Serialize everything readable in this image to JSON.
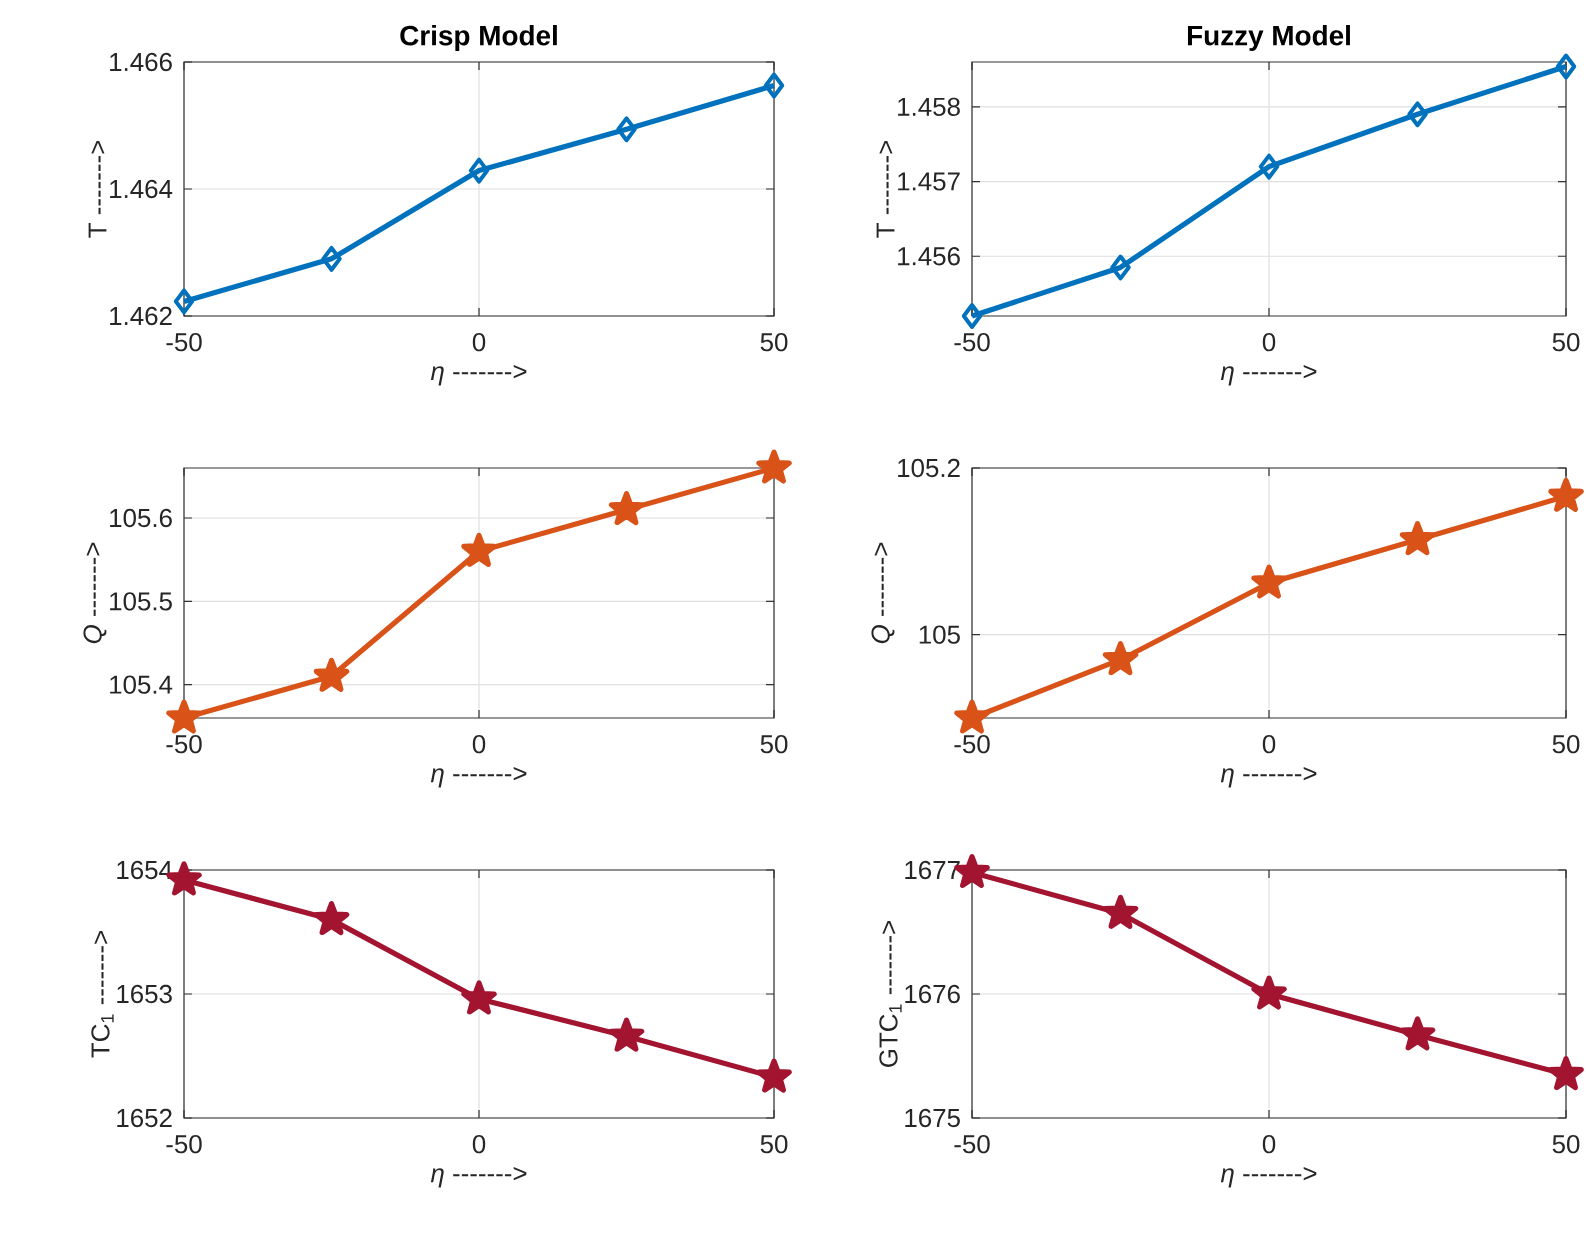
{
  "chart_data": [
    {
      "type": "line",
      "title": "Crisp Model",
      "xlabel": "*η* ------->",
      "ylabel": "T ------->",
      "x": [
        -50,
        -25,
        0,
        25,
        50
      ],
      "xlim": [
        -50,
        50
      ],
      "xticks": [
        -50,
        0,
        50
      ],
      "ylim": [
        1.462,
        1.466
      ],
      "yticks": [
        1.462,
        1.464,
        1.466
      ],
      "grid": true,
      "marker": "diamond",
      "line_style": "solid",
      "series": [
        {
          "color": "#0072bd",
          "values": [
            1.46223,
            1.4629,
            1.46429,
            1.46494,
            1.46563
          ]
        }
      ]
    },
    {
      "type": "line",
      "title": "Fuzzy Model",
      "xlabel": "*η* ------->",
      "ylabel": "T ------->",
      "x": [
        -50,
        -25,
        0,
        25,
        50
      ],
      "xlim": [
        -50,
        50
      ],
      "xticks": [
        -50,
        0,
        50
      ],
      "ylim": [
        1.4552,
        1.4586
      ],
      "yticks": [
        1.456,
        1.457,
        1.458
      ],
      "grid": true,
      "marker": "diamond",
      "line_style": "solid",
      "series": [
        {
          "color": "#0072bd",
          "values": [
            1.4552,
            1.45585,
            1.4572,
            1.4579,
            1.45854
          ]
        }
      ]
    },
    {
      "type": "line",
      "xlabel": "*η* ------->",
      "ylabel": "*Q* ------->",
      "x": [
        -50,
        -25,
        0,
        25,
        50
      ],
      "xlim": [
        -50,
        50
      ],
      "xticks": [
        -50,
        0,
        50
      ],
      "ylim": [
        105.36,
        105.66
      ],
      "yticks": [
        105.4,
        105.5,
        105.6
      ],
      "grid": true,
      "marker": "star",
      "line_style": "solid",
      "series": [
        {
          "color": "#d95319",
          "values": [
            105.36,
            105.41,
            105.56,
            105.61,
            105.66
          ]
        }
      ]
    },
    {
      "type": "line",
      "xlabel": "*η* ------->",
      "ylabel": "*Q* ------->",
      "x": [
        -50,
        -25,
        0,
        25,
        50
      ],
      "xlim": [
        -50,
        50
      ],
      "xticks": [
        -50,
        0,
        50
      ],
      "ylim": [
        104.9,
        105.2
      ],
      "yticks": [
        105,
        105.2
      ],
      "grid": true,
      "marker": "star",
      "line_style": "solid",
      "series": [
        {
          "color": "#d95319",
          "values": [
            104.9,
            104.97,
            105.062,
            105.114,
            105.166
          ]
        }
      ]
    },
    {
      "type": "line",
      "xlabel": "*η* ------->",
      "ylabel": "TC$_{1}$ ------->",
      "x": [
        -50,
        -25,
        0,
        25,
        50
      ],
      "xlim": [
        -50,
        50
      ],
      "xticks": [
        -50,
        0,
        50
      ],
      "ylim": [
        1652,
        1654
      ],
      "yticks": [
        1652,
        1653,
        1654
      ],
      "grid": true,
      "marker": "star",
      "line_style": "solid",
      "series": [
        {
          "color": "#a2142f",
          "values": [
            1653.92,
            1653.6,
            1652.96,
            1652.66,
            1652.33
          ]
        }
      ]
    },
    {
      "type": "line",
      "xlabel": "*η* ------->",
      "ylabel": "GTC$_{1}$ ------->",
      "x": [
        -50,
        -25,
        0,
        25,
        50
      ],
      "xlim": [
        -50,
        50
      ],
      "xticks": [
        -50,
        0,
        50
      ],
      "ylim": [
        1675,
        1677
      ],
      "yticks": [
        1675,
        1676,
        1677
      ],
      "grid": true,
      "marker": "star",
      "line_style": "solid",
      "series": [
        {
          "color": "#a2142f",
          "values": [
            1676.98,
            1676.65,
            1676.0,
            1675.67,
            1675.35
          ]
        }
      ]
    }
  ]
}
